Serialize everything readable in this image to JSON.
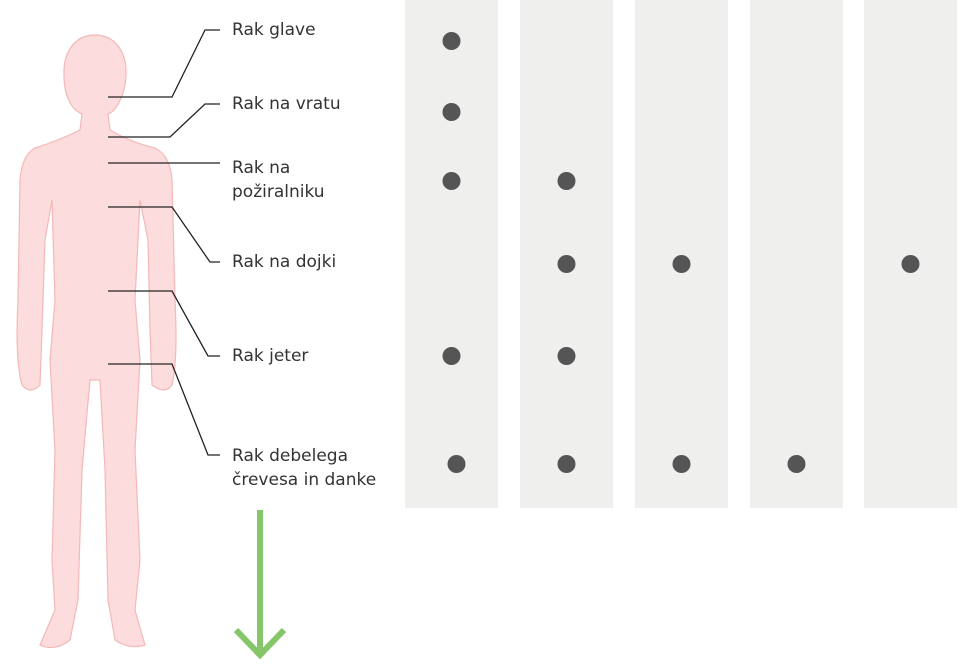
{
  "rows": [
    {
      "lines": [
        "Rak glave"
      ],
      "dots": [
        true,
        false,
        false,
        false,
        false
      ]
    },
    {
      "lines": [
        "Rak na vratu"
      ],
      "dots": [
        true,
        false,
        false,
        false,
        false
      ]
    },
    {
      "lines": [
        "Rak na",
        "požiralniku"
      ],
      "dots": [
        true,
        true,
        false,
        false,
        false
      ]
    },
    {
      "lines": [
        "Rak na dojki"
      ],
      "dots": [
        false,
        true,
        true,
        false,
        true
      ]
    },
    {
      "lines": [
        "Rak jeter"
      ],
      "dots": [
        true,
        true,
        false,
        false,
        false
      ]
    },
    {
      "lines": [
        "Rak debelega",
        "črevesa in danke"
      ],
      "dots": [
        true,
        true,
        true,
        true,
        false
      ]
    }
  ]
}
